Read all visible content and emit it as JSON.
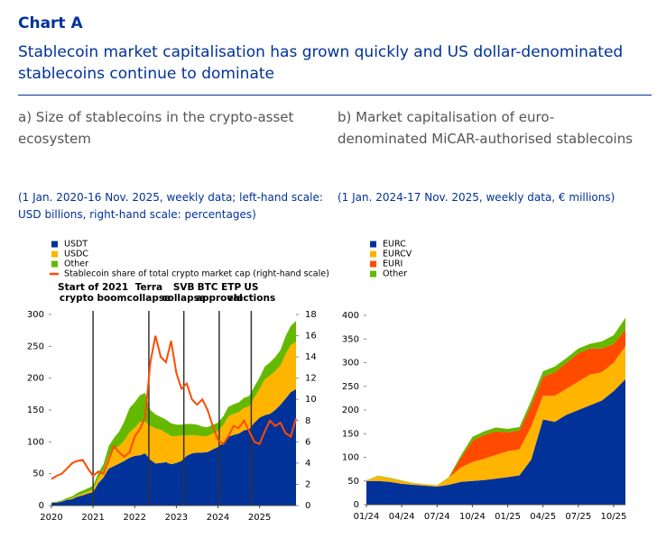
{
  "header": {
    "title": "Chart A",
    "subtitle": "Stablecoin market capitalisation has grown quickly and US dollar-denominated stablecoins continue to dominate"
  },
  "chart_data": [
    {
      "type": "area",
      "title": "a) Size of stablecoins in the crypto-asset ecosystem",
      "subtitle": "(1 Jan. 2020-16 Nov. 2025, weekly data; left-hand scale: USD billions, right-hand scale: percentages)",
      "x": [
        2020.0,
        2020.125,
        2020.25,
        2020.375,
        2020.5,
        2020.625,
        2020.75,
        2020.875,
        2021.0,
        2021.125,
        2021.25,
        2021.375,
        2021.5,
        2021.625,
        2021.75,
        2021.875,
        2022.0,
        2022.125,
        2022.25,
        2022.375,
        2022.5,
        2022.625,
        2022.75,
        2022.875,
        2023.0,
        2023.125,
        2023.25,
        2023.375,
        2023.5,
        2023.625,
        2023.75,
        2023.875,
        2024.0,
        2024.125,
        2024.25,
        2024.375,
        2024.5,
        2024.625,
        2024.75,
        2024.875,
        2025.0,
        2025.125,
        2025.25,
        2025.375,
        2025.5,
        2025.625,
        2025.75,
        2025.875
      ],
      "xlim": [
        2020,
        2025.875
      ],
      "xticks": [
        2020,
        2021,
        2022,
        2023,
        2024,
        2025
      ],
      "ylim": [
        0,
        300
      ],
      "yticks": [
        0,
        50,
        100,
        150,
        200,
        250,
        300
      ],
      "y2lim": [
        0,
        18
      ],
      "y2ticks": [
        0,
        2,
        4,
        6,
        8,
        10,
        12,
        14,
        16,
        18
      ],
      "series": [
        {
          "name": "USDT",
          "color": "#003299",
          "values": [
            4,
            4.5,
            6,
            9,
            10,
            14,
            16,
            19,
            21,
            35,
            44,
            58,
            62,
            66,
            70,
            75,
            78,
            79,
            82,
            72,
            66,
            67,
            68,
            65,
            67,
            70,
            78,
            82,
            83,
            83,
            84,
            88,
            92,
            98,
            108,
            111,
            113,
            118,
            120,
            130,
            138,
            142,
            144,
            150,
            158,
            168,
            178,
            183
          ]
        },
        {
          "name": "USDC",
          "color": "#ffb400",
          "values": [
            0.5,
            0.6,
            0.7,
            1,
            1.5,
            2,
            2.5,
            3,
            4,
            8,
            11,
            20,
            26,
            28,
            32,
            40,
            44,
            52,
            50,
            53,
            55,
            52,
            46,
            44,
            42,
            40,
            32,
            29,
            27,
            26,
            25,
            25,
            25,
            28,
            32,
            33,
            34,
            35,
            36,
            40,
            45,
            56,
            60,
            61,
            62,
            70,
            74,
            74
          ]
        },
        {
          "name": "Other",
          "color": "#65b800",
          "values": [
            1,
            1,
            1.5,
            2,
            3,
            4,
            5,
            5,
            6,
            8,
            10,
            15,
            18,
            22,
            30,
            38,
            40,
            42,
            45,
            25,
            22,
            20,
            21,
            20,
            18,
            17,
            18,
            17,
            17,
            15,
            14,
            14,
            13,
            14,
            15,
            15,
            15,
            16,
            16,
            17,
            18,
            20,
            21,
            22,
            24,
            28,
            30,
            33
          ]
        },
        {
          "name": "Stablecoin share of total crypto market cap (right-hand scale)",
          "type": "line",
          "axis": "y2",
          "color": "#ff4b00",
          "values": [
            2.5,
            2.8,
            3.0,
            3.5,
            4.0,
            4.2,
            4.3,
            3.5,
            2.8,
            3.2,
            3.0,
            4.3,
            5.6,
            5.0,
            4.6,
            5.0,
            6.5,
            7.2,
            8.3,
            13.5,
            16.0,
            14.0,
            13.5,
            15.5,
            12.5,
            11.0,
            11.5,
            10.0,
            9.5,
            10.0,
            9.0,
            7.5,
            6.2,
            5.8,
            6.5,
            7.5,
            7.3,
            8.0,
            7.0,
            6.0,
            5.8,
            7.0,
            8.0,
            7.5,
            7.8,
            6.8,
            6.5,
            8.2
          ]
        }
      ],
      "annotations": [
        {
          "x": 2021.0,
          "lines": [
            "Start of 2021",
            "crypto boom"
          ]
        },
        {
          "x": 2022.34,
          "lines": [
            "Terra",
            "collapse"
          ]
        },
        {
          "x": 2023.18,
          "lines": [
            "SVB",
            "collapse"
          ]
        },
        {
          "x": 2024.03,
          "lines": [
            "BTC ETP",
            "approval"
          ]
        },
        {
          "x": 2024.8,
          "lines": [
            "US",
            "elections"
          ]
        }
      ]
    },
    {
      "type": "area",
      "title": "b) Market capitalisation of euro-denominated MiCAR-authorised stablecoins",
      "subtitle": "(1 Jan. 2024-17 Nov. 2025, weekly data, € millions)",
      "categories": [
        "01/24",
        null,
        null,
        "04/24",
        null,
        null,
        "07/24",
        null,
        null,
        "10/24",
        null,
        null,
        "01/25",
        null,
        null,
        "04/25",
        null,
        null,
        "07/25",
        null,
        null,
        "10/25",
        null
      ],
      "ylim": [
        0,
        400
      ],
      "yticks": [
        0,
        50,
        100,
        150,
        200,
        250,
        300,
        350,
        400
      ],
      "series": [
        {
          "name": "EURC",
          "color": "#003299",
          "values": [
            50,
            50,
            48,
            44,
            42,
            40,
            38,
            42,
            48,
            50,
            52,
            55,
            58,
            62,
            95,
            180,
            175,
            190,
            200,
            210,
            220,
            240,
            265
          ]
        },
        {
          "name": "EURCV",
          "color": "#ffb400",
          "values": [
            2,
            10,
            8,
            6,
            4,
            3,
            3,
            15,
            30,
            40,
            45,
            50,
            55,
            55,
            70,
            50,
            55,
            55,
            60,
            65,
            60,
            60,
            70
          ]
        },
        {
          "name": "EURI",
          "color": "#ff4b00",
          "values": [
            0,
            0,
            0,
            0,
            0,
            0,
            0,
            0,
            20,
            45,
            50,
            50,
            40,
            40,
            45,
            40,
            50,
            55,
            60,
            55,
            50,
            40,
            35
          ]
        },
        {
          "name": "Other",
          "color": "#65b800",
          "values": [
            0,
            1,
            1,
            1,
            0,
            0,
            0,
            1,
            5,
            8,
            8,
            8,
            7,
            7,
            10,
            12,
            12,
            10,
            10,
            10,
            15,
            18,
            25
          ]
        }
      ]
    }
  ]
}
